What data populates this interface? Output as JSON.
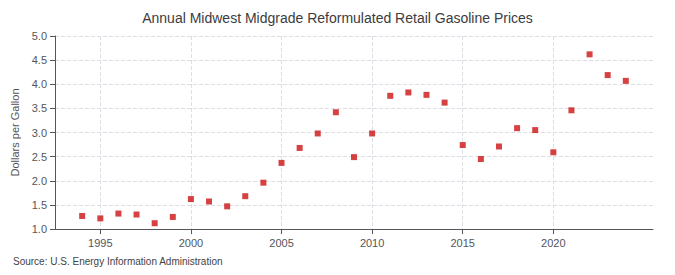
{
  "chart_data": {
    "type": "scatter",
    "title": "Annual Midwest Midgrade Reformulated Retail Gasoline Prices",
    "ylabel": "Dollars per Gallon",
    "annotation": "Source: U.S. Energy Information Administration",
    "x": [
      1994,
      1995,
      1996,
      1997,
      1998,
      1999,
      2000,
      2001,
      2002,
      2003,
      2004,
      2005,
      2006,
      2007,
      2008,
      2009,
      2010,
      2011,
      2012,
      2013,
      2014,
      2015,
      2016,
      2017,
      2018,
      2019,
      2020,
      2021,
      2022,
      2023,
      2024
    ],
    "values": [
      1.27,
      1.22,
      1.32,
      1.3,
      1.12,
      1.25,
      1.62,
      1.57,
      1.47,
      1.68,
      1.96,
      2.37,
      2.68,
      2.98,
      3.42,
      2.49,
      2.98,
      3.76,
      3.83,
      3.78,
      3.62,
      2.74,
      2.45,
      2.71,
      3.09,
      3.05,
      2.59,
      3.46,
      4.62,
      4.19,
      4.07
    ],
    "color": "#cc1111",
    "marker": "square",
    "xlim": [
      1992.5,
      2025.5
    ],
    "xticks": [
      1995,
      2000,
      2005,
      2010,
      2015,
      2020
    ],
    "ylim": [
      1.0,
      5.0
    ],
    "yticks": [
      {
        "value": 1.0,
        "label": "1.0"
      },
      1.5,
      {
        "value": 2.0,
        "label": "2.0"
      },
      2.5,
      {
        "value": 3.0,
        "label": "3.0"
      },
      3.5,
      {
        "value": 4.0,
        "label": "4.0"
      },
      4.5,
      {
        "value": 5.0,
        "label": "5.0"
      }
    ],
    "grid": true
  }
}
